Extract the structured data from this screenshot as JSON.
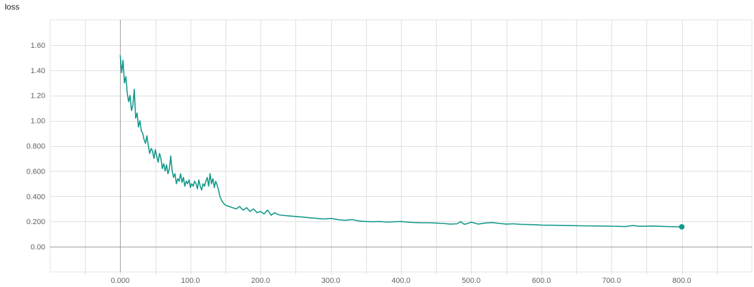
{
  "chart_data": {
    "type": "line",
    "title": "loss",
    "xlabel": "",
    "ylabel": "",
    "xlim": [
      -100,
      900
    ],
    "ylim": [
      -0.2,
      1.8
    ],
    "x_ticks": [
      0,
      100,
      200,
      300,
      400,
      500,
      600,
      700,
      800
    ],
    "x_tick_labels": [
      "0.000",
      "100.0",
      "200.0",
      "300.0",
      "400.0",
      "500.0",
      "600.0",
      "700.0",
      "800.0"
    ],
    "y_ticks": [
      0,
      0.2,
      0.4,
      0.6,
      0.8,
      1.0,
      1.2,
      1.4,
      1.6
    ],
    "y_tick_labels": [
      "0.00",
      "0.200",
      "0.400",
      "0.600",
      "0.800",
      "1.00",
      "1.20",
      "1.40",
      "1.60"
    ],
    "grid": true,
    "legend": "none",
    "colors": {
      "line": "#12988a",
      "grid": "#e0e0e0",
      "axis": "#9e9e9e"
    },
    "series": [
      {
        "x": [
          0,
          2,
          4,
          6,
          8,
          10,
          12,
          14,
          16,
          18,
          20,
          22,
          24,
          26,
          28,
          30,
          32,
          34,
          36,
          38,
          40,
          42,
          44,
          46,
          48,
          50,
          52,
          54,
          56,
          58,
          60,
          62,
          64,
          66,
          68,
          70,
          72,
          74,
          76,
          78,
          80,
          82,
          84,
          86,
          88,
          90,
          92,
          94,
          96,
          98,
          100,
          102,
          104,
          106,
          108,
          110,
          112,
          114,
          116,
          118,
          120,
          122,
          124,
          126,
          128,
          130,
          132,
          134,
          136,
          138,
          140,
          142,
          145,
          148,
          150,
          155,
          160,
          165,
          170,
          175,
          180,
          185,
          190,
          195,
          200,
          205,
          210,
          215,
          220,
          225,
          230,
          240,
          250,
          260,
          270,
          280,
          290,
          300,
          310,
          320,
          330,
          340,
          350,
          360,
          370,
          380,
          390,
          400,
          410,
          420,
          430,
          440,
          450,
          460,
          470,
          480,
          485,
          490,
          495,
          500,
          510,
          520,
          530,
          540,
          550,
          560,
          570,
          580,
          590,
          600,
          620,
          640,
          660,
          680,
          700,
          720,
          730,
          740,
          760,
          780,
          800
        ],
        "y": [
          1.52,
          1.38,
          1.48,
          1.3,
          1.35,
          1.22,
          1.15,
          1.2,
          1.08,
          1.12,
          1.25,
          1.02,
          1.06,
          0.95,
          1.0,
          0.92,
          0.9,
          0.85,
          0.82,
          0.88,
          0.8,
          0.74,
          0.78,
          0.76,
          0.7,
          0.77,
          0.72,
          0.67,
          0.74,
          0.7,
          0.62,
          0.66,
          0.6,
          0.65,
          0.58,
          0.62,
          0.72,
          0.6,
          0.55,
          0.58,
          0.5,
          0.54,
          0.52,
          0.58,
          0.51,
          0.55,
          0.48,
          0.52,
          0.5,
          0.53,
          0.47,
          0.5,
          0.48,
          0.52,
          0.5,
          0.46,
          0.53,
          0.48,
          0.45,
          0.5,
          0.48,
          0.52,
          0.55,
          0.48,
          0.58,
          0.5,
          0.54,
          0.47,
          0.52,
          0.49,
          0.45,
          0.4,
          0.36,
          0.34,
          0.33,
          0.32,
          0.31,
          0.3,
          0.32,
          0.29,
          0.31,
          0.28,
          0.3,
          0.27,
          0.28,
          0.26,
          0.29,
          0.25,
          0.27,
          0.255,
          0.25,
          0.245,
          0.24,
          0.235,
          0.23,
          0.225,
          0.22,
          0.225,
          0.215,
          0.21,
          0.215,
          0.205,
          0.2,
          0.198,
          0.2,
          0.196,
          0.198,
          0.2,
          0.195,
          0.192,
          0.19,
          0.19,
          0.188,
          0.185,
          0.18,
          0.182,
          0.2,
          0.178,
          0.185,
          0.195,
          0.18,
          0.188,
          0.192,
          0.185,
          0.18,
          0.182,
          0.178,
          0.176,
          0.175,
          0.172,
          0.17,
          0.168,
          0.166,
          0.165,
          0.163,
          0.16,
          0.168,
          0.162,
          0.164,
          0.16,
          0.158
        ]
      }
    ]
  }
}
